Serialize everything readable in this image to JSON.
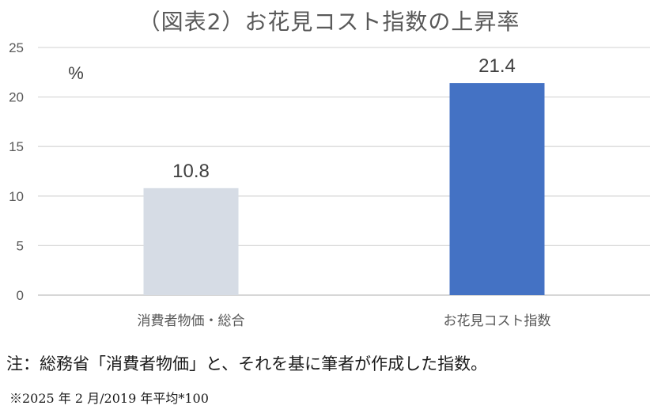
{
  "chart_data": {
    "type": "bar",
    "title": "（図表2）お花見コスト指数の上昇率",
    "unit_label": "%",
    "categories": [
      "消費者物価・総合",
      "お花見コスト指数"
    ],
    "values": [
      10.8,
      21.4
    ],
    "data_labels": [
      "10.8",
      "21.4"
    ],
    "bar_colors": [
      "#d6dce5",
      "#4472c4"
    ],
    "ylim": [
      0,
      25
    ],
    "yticks": [
      0,
      5,
      10,
      15,
      20,
      25
    ],
    "grid": true,
    "legend": "none"
  },
  "note": "注：総務省「消費者物価」と、それを基に筆者が作成した指数。",
  "footnote": "※2025 年 2 月/2019 年平均*100"
}
